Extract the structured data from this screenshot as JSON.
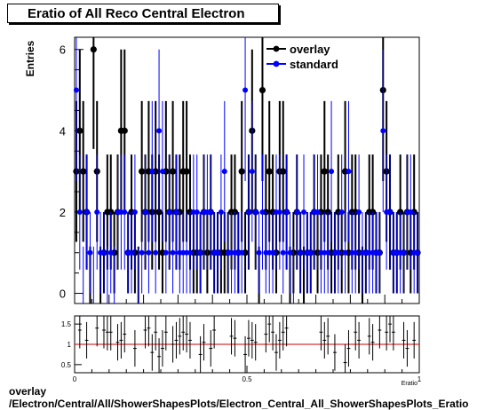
{
  "title": "Eratio of All Reco Central Electron",
  "footer": {
    "line1": "overlay",
    "line2": "/Electron/Central/All/ShowerShapesPlots/Electron_Central_All_ShowerShapesPlots_Eratio"
  },
  "chart_data": [
    {
      "type": "scatter",
      "panel": "main",
      "ylabel": "Entries",
      "xlim": [
        0,
        1
      ],
      "ylim": [
        -0.25,
        6.3
      ],
      "yticks": [
        "0",
        "2",
        "4",
        "6"
      ],
      "legend": {
        "placement": "top-right",
        "entries": [
          "overlay",
          "standard"
        ]
      },
      "colors": {
        "overlay": "#000000",
        "standard": "#0000ff"
      },
      "series": [
        {
          "name": "overlay",
          "x": [
            0.005,
            0.015,
            0.025,
            0.035,
            0.045,
            0.055,
            0.065,
            0.075,
            0.085,
            0.095,
            0.105,
            0.115,
            0.125,
            0.135,
            0.145,
            0.155,
            0.165,
            0.175,
            0.185,
            0.195,
            0.205,
            0.215,
            0.225,
            0.235,
            0.245,
            0.255,
            0.265,
            0.275,
            0.285,
            0.295,
            0.305,
            0.315,
            0.325,
            0.335,
            0.345,
            0.355,
            0.365,
            0.375,
            0.385,
            0.395,
            0.405,
            0.415,
            0.425,
            0.435,
            0.445,
            0.455,
            0.465,
            0.475,
            0.485,
            0.495,
            0.505,
            0.515,
            0.525,
            0.535,
            0.545,
            0.555,
            0.565,
            0.575,
            0.585,
            0.595,
            0.605,
            0.615,
            0.625,
            0.635,
            0.645,
            0.655,
            0.665,
            0.675,
            0.685,
            0.695,
            0.705,
            0.715,
            0.725,
            0.735,
            0.745,
            0.755,
            0.765,
            0.775,
            0.785,
            0.795,
            0.805,
            0.815,
            0.825,
            0.835,
            0.845,
            0.855,
            0.865,
            0.875,
            0.885,
            0.895,
            0.905,
            0.915,
            0.925,
            0.935,
            0.945,
            0.955,
            0.965,
            0.975,
            0.985,
            0.995
          ],
          "y": [
            3,
            4,
            3,
            2,
            0,
            6,
            3,
            0,
            1,
            2,
            2,
            1,
            2,
            4,
            4,
            1,
            2,
            1,
            0,
            3,
            2,
            3,
            2,
            3,
            2,
            1,
            3,
            2,
            3,
            2,
            2,
            3,
            3,
            2,
            1,
            1,
            1,
            2,
            1,
            2,
            1,
            1,
            1,
            1,
            1,
            2,
            2,
            1,
            3,
            1,
            2,
            4,
            2,
            0,
            5,
            2,
            3,
            2,
            1,
            3,
            3,
            2,
            0,
            1,
            2,
            1,
            0,
            1,
            1,
            2,
            1,
            2,
            3,
            2,
            1,
            1,
            2,
            1,
            3,
            1,
            2,
            2,
            1,
            0,
            1,
            2,
            2,
            1,
            1,
            5,
            3,
            2,
            1,
            1,
            2,
            1,
            2,
            1,
            2,
            1
          ]
        },
        {
          "name": "standard",
          "x": [
            0.005,
            0.015,
            0.025,
            0.035,
            0.045,
            0.055,
            0.065,
            0.075,
            0.085,
            0.095,
            0.105,
            0.115,
            0.125,
            0.135,
            0.145,
            0.155,
            0.165,
            0.175,
            0.185,
            0.195,
            0.205,
            0.215,
            0.225,
            0.235,
            0.245,
            0.255,
            0.265,
            0.275,
            0.285,
            0.295,
            0.305,
            0.315,
            0.325,
            0.335,
            0.345,
            0.355,
            0.365,
            0.375,
            0.385,
            0.395,
            0.405,
            0.415,
            0.425,
            0.435,
            0.445,
            0.455,
            0.465,
            0.475,
            0.485,
            0.495,
            0.505,
            0.515,
            0.525,
            0.535,
            0.545,
            0.555,
            0.565,
            0.575,
            0.585,
            0.595,
            0.605,
            0.615,
            0.625,
            0.635,
            0.645,
            0.655,
            0.665,
            0.675,
            0.685,
            0.695,
            0.705,
            0.715,
            0.725,
            0.735,
            0.745,
            0.755,
            0.765,
            0.775,
            0.785,
            0.795,
            0.805,
            0.815,
            0.825,
            0.835,
            0.845,
            0.855,
            0.865,
            0.875,
            0.885,
            0.895,
            0.905,
            0.915,
            0.925,
            0.935,
            0.945,
            0.955,
            0.965,
            0.975,
            0.985,
            0.995
          ],
          "y": [
            5,
            2,
            0,
            2,
            1,
            0,
            2,
            1,
            1,
            0,
            1,
            0,
            2,
            2,
            2,
            1,
            1,
            2,
            0,
            1,
            2,
            1,
            3,
            1,
            4,
            3,
            1,
            2,
            1,
            2,
            1,
            1,
            1,
            1,
            2,
            2,
            1,
            2,
            2,
            2,
            1,
            1,
            2,
            3,
            1,
            1,
            1,
            1,
            1,
            5,
            2,
            3,
            2,
            1,
            2,
            1,
            1,
            1,
            2,
            2,
            1,
            2,
            1,
            0,
            2,
            1,
            2,
            1,
            1,
            2,
            2,
            1,
            1,
            1,
            3,
            1,
            1,
            2,
            1,
            3,
            1,
            1,
            2,
            1,
            1,
            1,
            1,
            1,
            1,
            4,
            2,
            2,
            1,
            1,
            1,
            1,
            2,
            2,
            1,
            1
          ]
        }
      ]
    },
    {
      "type": "scatter",
      "panel": "ratio",
      "xlim": [
        0,
        1
      ],
      "ylim": [
        0.3,
        1.7
      ],
      "xticks": [
        "0",
        "0.5",
        "1"
      ],
      "yticks": [
        "0.5",
        "1",
        "1.5"
      ],
      "xlabel": "Eratio",
      "reference_line": 1,
      "colors": {
        "ratio": "#000000",
        "reference": "#cc0000"
      },
      "x": [
        0.015,
        0.035,
        0.065,
        0.085,
        0.095,
        0.105,
        0.125,
        0.135,
        0.145,
        0.175,
        0.205,
        0.215,
        0.225,
        0.235,
        0.245,
        0.255,
        0.265,
        0.285,
        0.295,
        0.305,
        0.315,
        0.325,
        0.335,
        0.365,
        0.375,
        0.395,
        0.405,
        0.455,
        0.465,
        0.495,
        0.505,
        0.515,
        0.525,
        0.555,
        0.565,
        0.575,
        0.585,
        0.595,
        0.605,
        0.615,
        0.715,
        0.725,
        0.735,
        0.755,
        0.785,
        0.795,
        0.815,
        0.825,
        0.855,
        0.865,
        0.885,
        0.905,
        0.915,
        0.925,
        0.955,
        0.965,
        0.985
      ],
      "y": [
        1.35,
        1.1,
        1.4,
        1.35,
        1.3,
        1.3,
        1.05,
        1.1,
        1.25,
        0.9,
        1.35,
        1.4,
        0.8,
        1.3,
        0.7,
        0.9,
        1.3,
        1.0,
        1.1,
        1.2,
        1.3,
        1.25,
        1.1,
        0.75,
        1.05,
        0.9,
        1.35,
        1.2,
        1.15,
        0.75,
        1.15,
        1.1,
        1.05,
        1.25,
        1.5,
        1.3,
        0.8,
        1.1,
        1.3,
        1.4,
        1.3,
        1.1,
        1.2,
        0.8,
        0.55,
        0.9,
        1.3,
        1.1,
        1.2,
        1.05,
        1.35,
        1.3,
        1.5,
        1.3,
        1.1,
        0.9,
        1.1
      ]
    }
  ]
}
